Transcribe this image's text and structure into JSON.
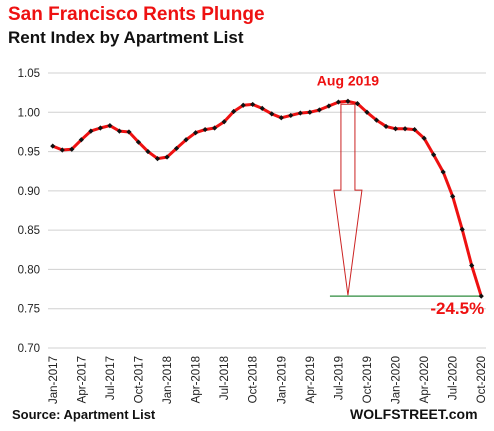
{
  "header": {
    "title": "San Francisco Rents Plunge",
    "subtitle": "Rent Index by Apartment List"
  },
  "footer": {
    "source": "Source: Apartment List",
    "brand": "WOLFSTREET.com"
  },
  "colors": {
    "line": "#ee1111",
    "marker": "#111111",
    "grid": "#d0d0d0",
    "baseline": "#2e8b3e",
    "arrow": "#cc2222"
  },
  "chart_data": {
    "type": "line",
    "title": "San Francisco Rents Plunge",
    "subtitle": "Rent Index by Apartment List",
    "xlabel": "",
    "ylabel": "",
    "ylim": [
      0.7,
      1.05
    ],
    "y_ticks": [
      "0.70",
      "0.75",
      "0.80",
      "0.85",
      "0.90",
      "0.95",
      "1.00",
      "1.05"
    ],
    "y_tick_values": [
      0.7,
      0.75,
      0.8,
      0.85,
      0.9,
      0.95,
      1.0,
      1.05
    ],
    "grid": "horizontal",
    "x_tick_labels": [
      "Jan-2017",
      "Apr-2017",
      "Jul-2017",
      "Oct-2017",
      "Jan-2018",
      "Apr-2018",
      "Jul-2018",
      "Oct-2018",
      "Jan-2019",
      "Apr-2019",
      "Jul-2019",
      "Oct-2019",
      "Jan-2020",
      "Apr-2020",
      "Jul-2020",
      "Oct-2020"
    ],
    "x": [
      "Jan-2017",
      "Feb-2017",
      "Mar-2017",
      "Apr-2017",
      "May-2017",
      "Jun-2017",
      "Jul-2017",
      "Aug-2017",
      "Sep-2017",
      "Oct-2017",
      "Nov-2017",
      "Dec-2017",
      "Jan-2018",
      "Feb-2018",
      "Mar-2018",
      "Apr-2018",
      "May-2018",
      "Jun-2018",
      "Jul-2018",
      "Aug-2018",
      "Sep-2018",
      "Oct-2018",
      "Nov-2018",
      "Dec-2018",
      "Jan-2019",
      "Feb-2019",
      "Mar-2019",
      "Apr-2019",
      "May-2019",
      "Jun-2019",
      "Jul-2019",
      "Aug-2019",
      "Sep-2019",
      "Oct-2019",
      "Nov-2019",
      "Dec-2019",
      "Jan-2020",
      "Feb-2020",
      "Mar-2020",
      "Apr-2020",
      "May-2020",
      "Jun-2020",
      "Jul-2020",
      "Aug-2020",
      "Sep-2020",
      "Oct-2020"
    ],
    "series": [
      {
        "values": [
          0.957,
          0.952,
          0.953,
          0.965,
          0.976,
          0.98,
          0.983,
          0.976,
          0.975,
          0.962,
          0.95,
          0.941,
          0.943,
          0.954,
          0.965,
          0.974,
          0.978,
          0.98,
          0.988,
          1.001,
          1.009,
          1.01,
          1.005,
          0.998,
          0.993,
          0.996,
          0.999,
          1.0,
          1.003,
          1.008,
          1.013,
          1.014,
          1.011,
          1.0,
          0.99,
          0.982,
          0.979,
          0.979,
          0.978,
          0.967,
          0.946,
          0.924,
          0.893,
          0.851,
          0.805,
          0.766
        ]
      }
    ],
    "annotations": {
      "peak_label": "Aug 2019",
      "peak_index": 31,
      "drop_label": "-24.5%",
      "end_index": 45
    }
  }
}
